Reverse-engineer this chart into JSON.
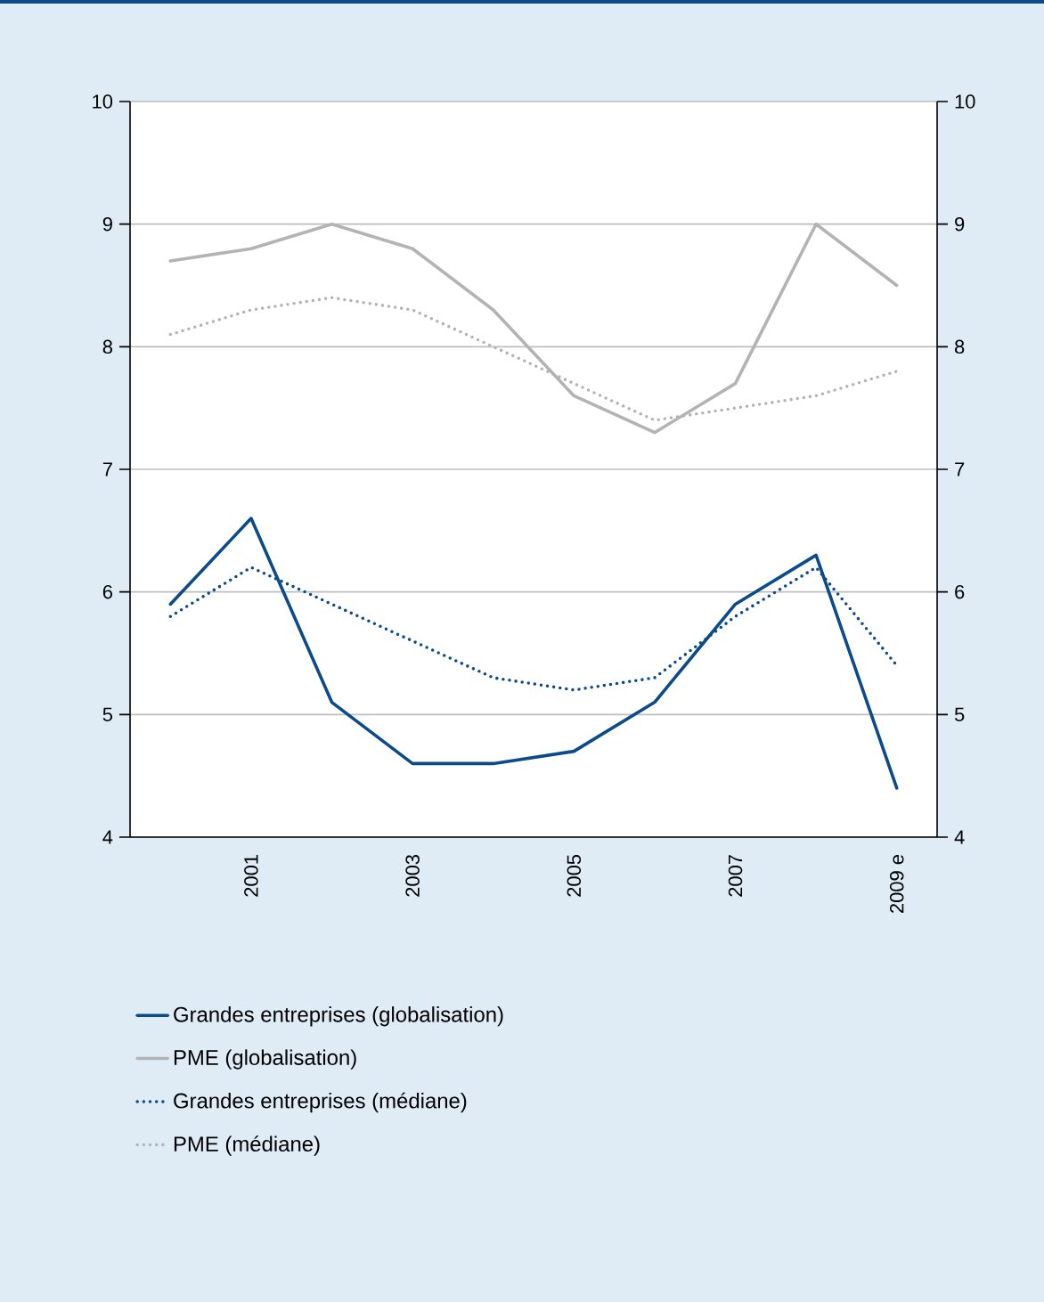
{
  "chart_data": {
    "type": "line",
    "categories": [
      null,
      "2001",
      null,
      "2003",
      null,
      "2005",
      null,
      "2007",
      null,
      "2009 e"
    ],
    "series": [
      {
        "name": "Grandes entreprises (globalisation)",
        "color": "#0b4a8b",
        "line_style": "solid",
        "values": [
          5.9,
          6.6,
          5.1,
          4.6,
          4.6,
          4.7,
          5.1,
          5.9,
          6.3,
          4.4
        ]
      },
      {
        "name": "PME (globalisation)",
        "color": "#b3b3b3",
        "line_style": "solid",
        "values": [
          8.7,
          8.8,
          9.0,
          8.8,
          8.3,
          7.6,
          7.3,
          7.7,
          9.0,
          8.5
        ]
      },
      {
        "name": "Grandes entreprises (médiane)",
        "color": "#0b4a8b",
        "line_style": "dotted",
        "values": [
          5.8,
          6.2,
          5.9,
          5.6,
          5.3,
          5.2,
          5.3,
          5.8,
          6.2,
          5.4
        ]
      },
      {
        "name": "PME (médiane)",
        "color": "#b3b3b3",
        "line_style": "dotted",
        "values": [
          8.1,
          8.3,
          8.4,
          8.3,
          8.0,
          7.7,
          7.4,
          7.5,
          7.6,
          7.8
        ]
      }
    ],
    "ylim": [
      4,
      10
    ],
    "yticks": [
      4,
      5,
      6,
      7,
      8,
      9,
      10
    ],
    "y2lim": [
      4,
      10
    ],
    "y2ticks": [
      4,
      5,
      6,
      7,
      8,
      9,
      10
    ],
    "grid": "y",
    "legend": "bottom"
  }
}
